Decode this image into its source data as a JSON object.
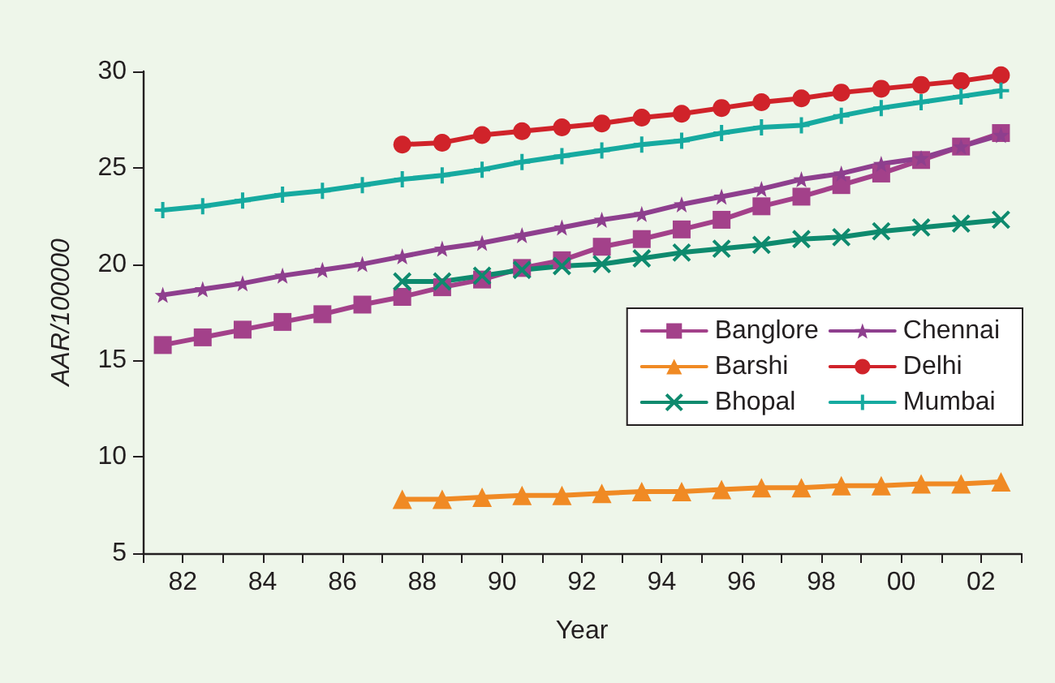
{
  "chart_data": {
    "type": "line",
    "xlabel": "Year",
    "ylabel": "AAR/100000",
    "xlim": [
      1981,
      2003
    ],
    "xticks": [
      {
        "value": 1981,
        "label": null
      },
      {
        "value": 1982,
        "label": "82"
      },
      {
        "value": 1983,
        "label": null
      },
      {
        "value": 1984,
        "label": "84"
      },
      {
        "value": 1985,
        "label": null
      },
      {
        "value": 1986,
        "label": "86"
      },
      {
        "value": 1987,
        "label": null
      },
      {
        "value": 1988,
        "label": "88"
      },
      {
        "value": 1989,
        "label": null
      },
      {
        "value": 1990,
        "label": "90"
      },
      {
        "value": 1991,
        "label": null
      },
      {
        "value": 1992,
        "label": "92"
      },
      {
        "value": 1993,
        "label": null
      },
      {
        "value": 1994,
        "label": "94"
      },
      {
        "value": 1995,
        "label": null
      },
      {
        "value": 1996,
        "label": "96"
      },
      {
        "value": 1997,
        "label": null
      },
      {
        "value": 1998,
        "label": "98"
      },
      {
        "value": 1999,
        "label": null
      },
      {
        "value": 2000,
        "label": "00"
      },
      {
        "value": 2001,
        "label": null
      },
      {
        "value": 2002,
        "label": "02"
      },
      {
        "value": 2003,
        "label": null
      }
    ],
    "ylim": [
      5,
      30
    ],
    "yticks": [
      5,
      10,
      15,
      20,
      25,
      30
    ],
    "grid": false,
    "legend": "right",
    "series": [
      {
        "name": "Banglore",
        "color": "#a3418a",
        "marker": "square",
        "x": [
          1981.5,
          1982.5,
          1983.5,
          1984.5,
          1985.5,
          1986.5,
          1987.5,
          1988.5,
          1989.5,
          1990.5,
          1991.5,
          1992.5,
          1993.5,
          1994.5,
          1995.5,
          1996.5,
          1997.5,
          1998.5,
          1999.5,
          2000.5,
          2001.5,
          2002.5
        ],
        "values": [
          15.8,
          16.2,
          16.6,
          17.0,
          17.4,
          17.9,
          18.3,
          18.8,
          19.2,
          19.8,
          20.2,
          20.9,
          21.3,
          21.8,
          22.3,
          23.0,
          23.5,
          24.1,
          24.7,
          25.4,
          26.1,
          26.8
        ]
      },
      {
        "name": "Barshi",
        "color": "#f08a24",
        "marker": "triangle",
        "x": [
          1987.5,
          1988.5,
          1989.5,
          1990.5,
          1991.5,
          1992.5,
          1993.5,
          1994.5,
          1995.5,
          1996.5,
          1997.5,
          1998.5,
          1999.5,
          2000.5,
          2001.5,
          2002.5
        ],
        "values": [
          7.8,
          7.8,
          7.9,
          8.0,
          8.0,
          8.1,
          8.2,
          8.2,
          8.3,
          8.4,
          8.4,
          8.5,
          8.5,
          8.6,
          8.6,
          8.7
        ]
      },
      {
        "name": "Bhopal",
        "color": "#0e8a6e",
        "marker": "cross",
        "x": [
          1987.5,
          1988.5,
          1989.5,
          1990.5,
          1991.5,
          1992.5,
          1993.5,
          1994.5,
          1995.5,
          1996.5,
          1997.5,
          1998.5,
          1999.5,
          2000.5,
          2001.5,
          2002.5
        ],
        "values": [
          19.1,
          19.1,
          19.4,
          19.7,
          19.9,
          20.0,
          20.3,
          20.6,
          20.8,
          21.0,
          21.3,
          21.4,
          21.7,
          21.9,
          22.1,
          22.3
        ]
      },
      {
        "name": "Chennai",
        "color": "#8e3f8e",
        "marker": "star",
        "x": [
          1981.5,
          1982.5,
          1983.5,
          1984.5,
          1985.5,
          1986.5,
          1987.5,
          1988.5,
          1989.5,
          1990.5,
          1991.5,
          1992.5,
          1993.5,
          1994.5,
          1995.5,
          1996.5,
          1997.5,
          1998.5,
          1999.5,
          2000.5,
          2001.5,
          2002.5
        ],
        "values": [
          18.4,
          18.7,
          19.0,
          19.4,
          19.7,
          20.0,
          20.4,
          20.8,
          21.1,
          21.5,
          21.9,
          22.3,
          22.6,
          23.1,
          23.5,
          23.9,
          24.4,
          24.7,
          25.2,
          25.5,
          26.1,
          26.7
        ]
      },
      {
        "name": "Delhi",
        "color": "#d0232a",
        "marker": "circle",
        "x": [
          1987.5,
          1988.5,
          1989.5,
          1990.5,
          1991.5,
          1992.5,
          1993.5,
          1994.5,
          1995.5,
          1996.5,
          1997.5,
          1998.5,
          1999.5,
          2000.5,
          2001.5,
          2002.5
        ],
        "values": [
          26.2,
          26.3,
          26.7,
          26.9,
          27.1,
          27.3,
          27.6,
          27.8,
          28.1,
          28.4,
          28.6,
          28.9,
          29.1,
          29.3,
          29.5,
          29.8
        ]
      },
      {
        "name": "Mumbai",
        "color": "#16aaa0",
        "marker": "plus",
        "x": [
          1981.5,
          1982.5,
          1983.5,
          1984.5,
          1985.5,
          1986.5,
          1987.5,
          1988.5,
          1989.5,
          1990.5,
          1991.5,
          1992.5,
          1993.5,
          1994.5,
          1995.5,
          1996.5,
          1997.5,
          1998.5,
          1999.5,
          2000.5,
          2001.5,
          2002.5
        ],
        "values": [
          22.8,
          23.0,
          23.3,
          23.6,
          23.8,
          24.1,
          24.4,
          24.6,
          24.9,
          25.3,
          25.6,
          25.9,
          26.2,
          26.4,
          26.8,
          27.1,
          27.2,
          27.7,
          28.1,
          28.4,
          28.7,
          29.0
        ]
      }
    ]
  }
}
